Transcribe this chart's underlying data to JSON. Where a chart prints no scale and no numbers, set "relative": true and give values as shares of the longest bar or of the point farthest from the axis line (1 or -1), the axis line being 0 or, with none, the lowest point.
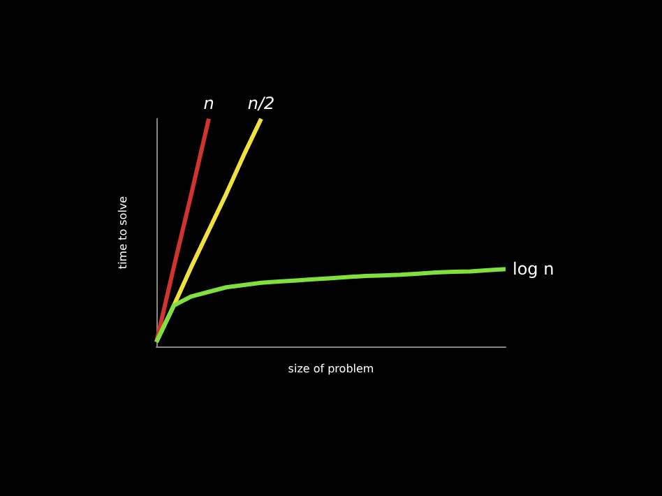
{
  "chart_data": {
    "type": "line",
    "relative": true,
    "xlabel": "size of problem",
    "ylabel": "time to solve",
    "categories": [
      null,
      null,
      null,
      null,
      null,
      null,
      null,
      null,
      null,
      null,
      null,
      null,
      null,
      null,
      null,
      null,
      null,
      null,
      null,
      null,
      null
    ],
    "series": [
      {
        "name": "n",
        "color": "#d0342c",
        "values": [
          0.02,
          0.35,
          0.67,
          1,
          null,
          null,
          null,
          null,
          null,
          null,
          null,
          null,
          null,
          null,
          null,
          null,
          null,
          null,
          null,
          null,
          null
        ]
      },
      {
        "name": "n/2",
        "color": "#f0e040",
        "values": [
          0.02,
          0.18,
          0.35,
          0.51,
          0.67,
          0.84,
          1,
          null,
          null,
          null,
          null,
          null,
          null,
          null,
          null,
          null,
          null,
          null,
          null,
          null,
          null
        ]
      },
      {
        "name": "log n",
        "color": "#7fe040",
        "values": [
          0.02,
          0.18,
          0.22,
          0.24,
          0.26,
          0.27,
          0.28,
          0.285,
          0.29,
          0.295,
          0.3,
          0.305,
          0.31,
          0.312,
          0.315,
          0.32,
          0.325,
          0.328,
          0.33,
          0.335,
          0.34
        ]
      }
    ],
    "grid": false,
    "legend": false,
    "marker": "none"
  }
}
